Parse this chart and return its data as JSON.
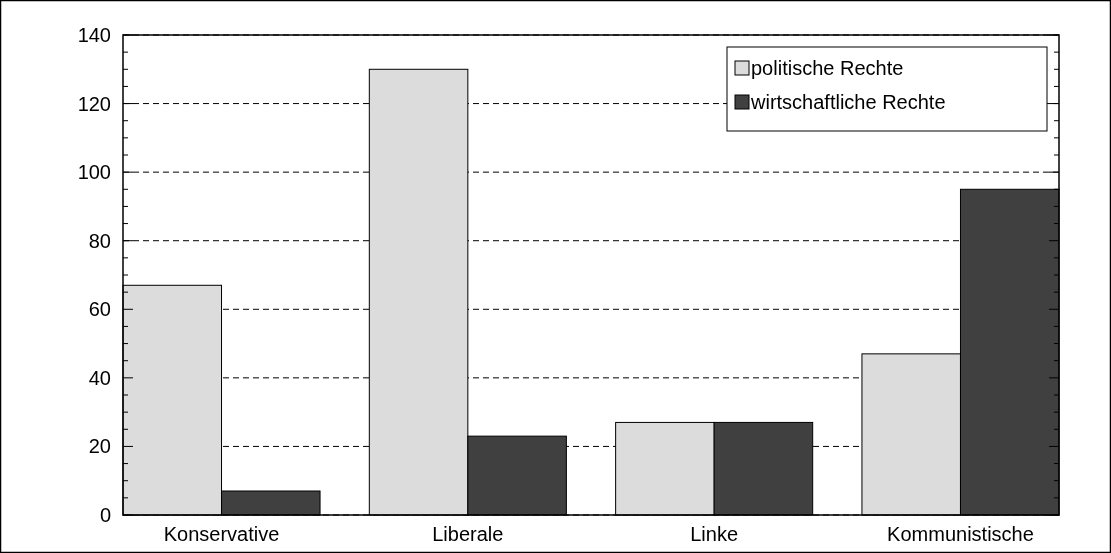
{
  "chart_data": {
    "type": "bar",
    "categories": [
      "Konservative",
      "Liberale",
      "Linke",
      "Kommunistische"
    ],
    "series": [
      {
        "name": "politische Rechte",
        "color": "#dcdcdc",
        "values": [
          67,
          130,
          27,
          47
        ]
      },
      {
        "name": "wirtschaftliche Rechte",
        "color": "#404040",
        "values": [
          7,
          23,
          27,
          95
        ]
      }
    ],
    "ylim": [
      0,
      140
    ],
    "yticks": [
      0,
      {
        "value": 5,
        "label": null
      },
      {
        "value": 10,
        "label": null
      },
      {
        "value": 15,
        "label": null
      },
      20,
      {
        "value": 25,
        "label": null
      },
      {
        "value": 30,
        "label": null
      },
      {
        "value": 35,
        "label": null
      },
      40,
      {
        "value": 45,
        "label": null
      },
      {
        "value": 50,
        "label": null
      },
      {
        "value": 55,
        "label": null
      },
      60,
      {
        "value": 65,
        "label": null
      },
      {
        "value": 70,
        "label": null
      },
      {
        "value": 75,
        "label": null
      },
      80,
      {
        "value": 85,
        "label": null
      },
      {
        "value": 90,
        "label": null
      },
      {
        "value": 95,
        "label": null
      },
      100,
      {
        "value": 105,
        "label": null
      },
      {
        "value": 110,
        "label": null
      },
      {
        "value": 115,
        "label": null
      },
      120,
      {
        "value": 125,
        "label": null
      },
      {
        "value": 130,
        "label": null
      },
      {
        "value": 135,
        "label": null
      },
      140
    ],
    "grid": "y",
    "legend": "top right"
  }
}
